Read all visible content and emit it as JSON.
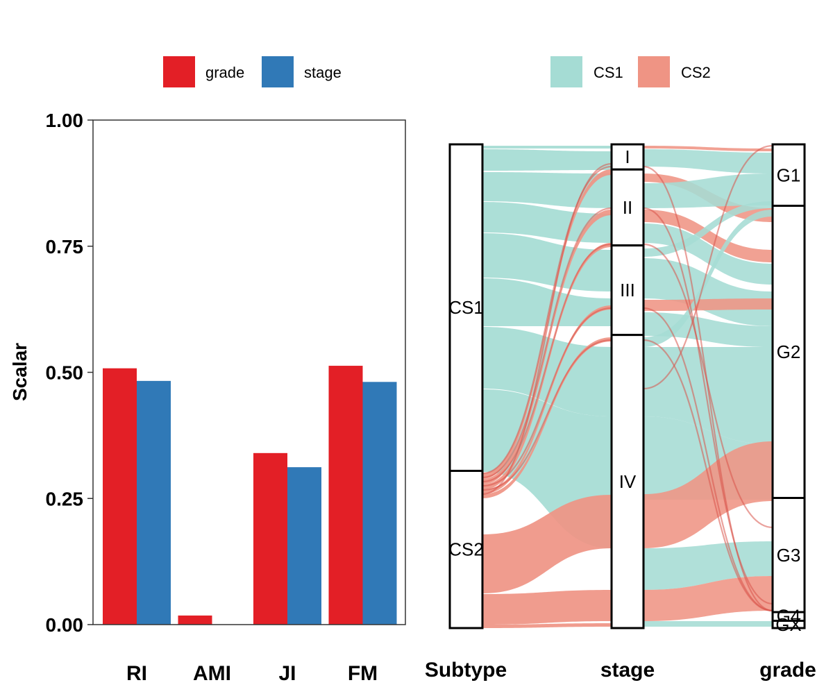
{
  "chart_data": [
    {
      "type": "bar",
      "ylabel": "Scalar",
      "ylim": [
        0,
        1
      ],
      "yticks": [
        "0.00",
        "0.25",
        "0.50",
        "0.75",
        "1.00"
      ],
      "categories": [
        "RI",
        "AMI",
        "JI",
        "FM"
      ],
      "series": [
        {
          "name": "grade",
          "color": "#e31f26",
          "values": [
            0.508,
            0.018,
            0.34,
            0.513
          ]
        },
        {
          "name": "stage",
          "color": "#3079b7",
          "values": [
            0.483,
            0.0,
            0.312,
            0.481
          ]
        }
      ],
      "legend": "top",
      "grid": false
    },
    {
      "type": "alluvial",
      "axes": [
        "Subtype",
        "stage",
        "grade"
      ],
      "legend_title": "",
      "fill_by": "Subtype",
      "groups": [
        {
          "name": "CS1",
          "color": "#a5dcd4"
        },
        {
          "name": "CS2",
          "color": "#ef9484"
        }
      ],
      "strata": {
        "Subtype": [
          {
            "label": "CS1",
            "share": 0.675
          },
          {
            "label": "CS2",
            "share": 0.325
          }
        ],
        "stage": [
          {
            "label": "I",
            "share": 0.052
          },
          {
            "label": "II",
            "share": 0.157
          },
          {
            "label": "III",
            "share": 0.185
          },
          {
            "label": "IV",
            "share": 0.606
          }
        ],
        "grade": [
          {
            "label": "G1",
            "share": 0.127
          },
          {
            "label": "G2",
            "share": 0.604
          },
          {
            "label": "G3",
            "share": 0.236
          },
          {
            "label": "G4",
            "share": 0.018
          },
          {
            "label": "GX",
            "share": 0.015
          }
        ]
      },
      "legend": "top"
    }
  ]
}
